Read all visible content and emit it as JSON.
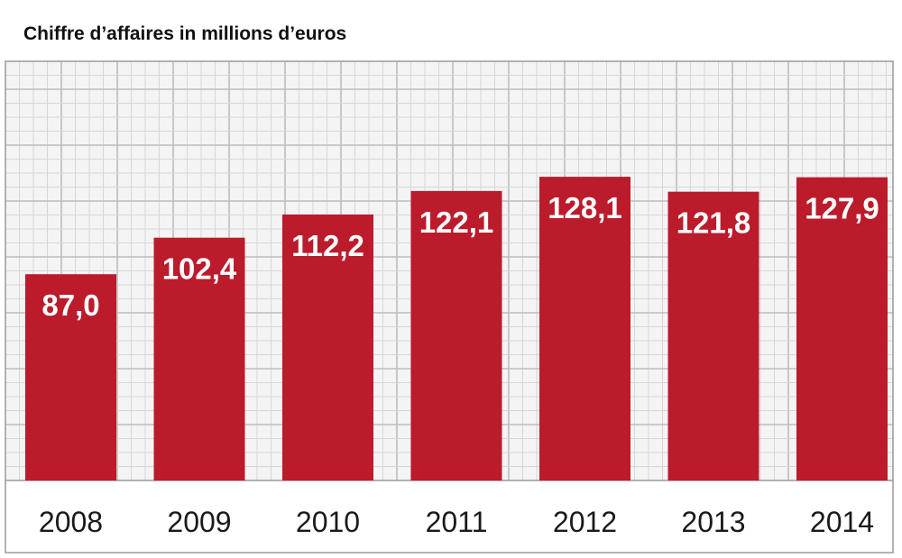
{
  "chart_data": {
    "type": "bar",
    "title": "Chiffre d’affaires in millions d’euros",
    "categories": [
      "2008",
      "2009",
      "2010",
      "2011",
      "2012",
      "2013",
      "2014"
    ],
    "values": [
      87.0,
      102.4,
      112.2,
      122.1,
      128.1,
      121.8,
      127.9
    ],
    "value_labels": [
      "87,0",
      "102,4",
      "112,2",
      "122,1",
      "128,1",
      "121,8",
      "127,9"
    ],
    "xlabel": "",
    "ylabel": "",
    "grid": true,
    "legend": "none",
    "colors": {
      "bar": "#bb1b2b",
      "grid_line": "#d6d6d6",
      "grid_major": "#bdbdbd",
      "plot_background": "#f4f4f4",
      "axis_band": "#ffffff",
      "frame": "#9a9a9a"
    }
  }
}
